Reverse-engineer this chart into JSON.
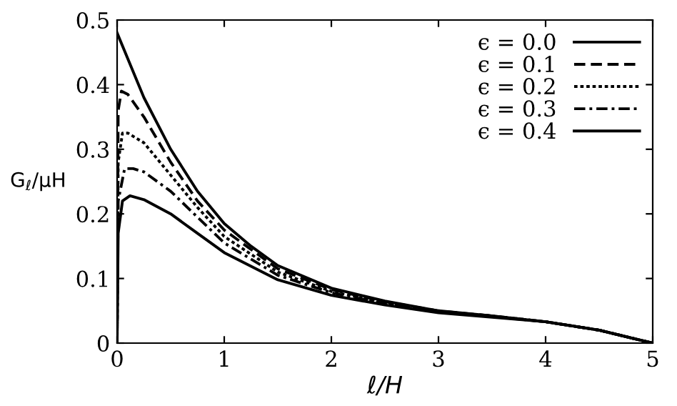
{
  "chart_data": {
    "type": "line",
    "xlabel": "ℓ/H",
    "ylabel": "G$_{ℓ}$/μH",
    "xlim": [
      0,
      5
    ],
    "ylim": [
      0,
      0.5
    ],
    "xticks": [
      0,
      1,
      2,
      3,
      4,
      5
    ],
    "yticks": [
      0,
      0.1,
      0.2,
      0.3,
      0.4,
      0.5
    ],
    "grid": false,
    "legend": "top right",
    "marker": "none",
    "series": [
      {
        "name": "ϵ = 0.0",
        "color": "#000000",
        "line_style": "solid",
        "x": [
          0,
          0.1,
          0.25,
          0.5,
          0.75,
          1,
          1.25,
          1.5,
          2,
          2.5,
          3,
          3.5,
          4,
          4.5,
          4.8,
          5
        ],
        "values": [
          0.48,
          0.44,
          0.38,
          0.3,
          0.235,
          0.185,
          0.15,
          0.12,
          0.085,
          0.065,
          0.05,
          0.042,
          0.033,
          0.02,
          0.008,
          0
        ]
      },
      {
        "name": "ϵ = 0.1",
        "color": "#000000",
        "line_style": "dashed",
        "x": [
          0,
          0.01,
          0.04,
          0.1,
          0.25,
          0.5,
          0.75,
          1,
          1.5,
          2,
          2.5,
          3,
          3.5,
          4,
          4.5,
          4.8,
          5
        ],
        "values": [
          0,
          0.36,
          0.39,
          0.385,
          0.35,
          0.28,
          0.22,
          0.175,
          0.115,
          0.083,
          0.064,
          0.05,
          0.042,
          0.033,
          0.02,
          0.008,
          0
        ]
      },
      {
        "name": "ϵ = 0.2",
        "color": "#000000",
        "line_style": "dotted",
        "x": [
          0,
          0.01,
          0.05,
          0.1,
          0.25,
          0.5,
          0.75,
          1,
          1.5,
          2,
          2.5,
          3,
          3.5,
          4,
          4.5,
          4.8,
          5
        ],
        "values": [
          0,
          0.28,
          0.325,
          0.325,
          0.31,
          0.26,
          0.21,
          0.165,
          0.11,
          0.08,
          0.062,
          0.049,
          0.042,
          0.033,
          0.02,
          0.008,
          0
        ]
      },
      {
        "name": "ϵ = 0.3",
        "color": "#000000",
        "line_style": "dashdot",
        "x": [
          0,
          0.01,
          0.07,
          0.15,
          0.25,
          0.5,
          0.75,
          1,
          1.5,
          2,
          2.5,
          3,
          3.5,
          4,
          4.5,
          4.8,
          5
        ],
        "values": [
          0,
          0.22,
          0.27,
          0.27,
          0.265,
          0.235,
          0.195,
          0.155,
          0.105,
          0.078,
          0.061,
          0.048,
          0.041,
          0.033,
          0.02,
          0.008,
          0
        ]
      },
      {
        "name": "ϵ = 0.4",
        "color": "#000000",
        "line_style": "solid",
        "x": [
          0,
          0.01,
          0.05,
          0.12,
          0.25,
          0.5,
          0.75,
          1,
          1.5,
          2,
          2.5,
          3,
          3.5,
          4,
          4.5,
          4.8,
          5
        ],
        "values": [
          0,
          0.17,
          0.22,
          0.228,
          0.222,
          0.2,
          0.17,
          0.14,
          0.098,
          0.074,
          0.059,
          0.047,
          0.04,
          0.033,
          0.02,
          0.008,
          0
        ]
      }
    ]
  }
}
